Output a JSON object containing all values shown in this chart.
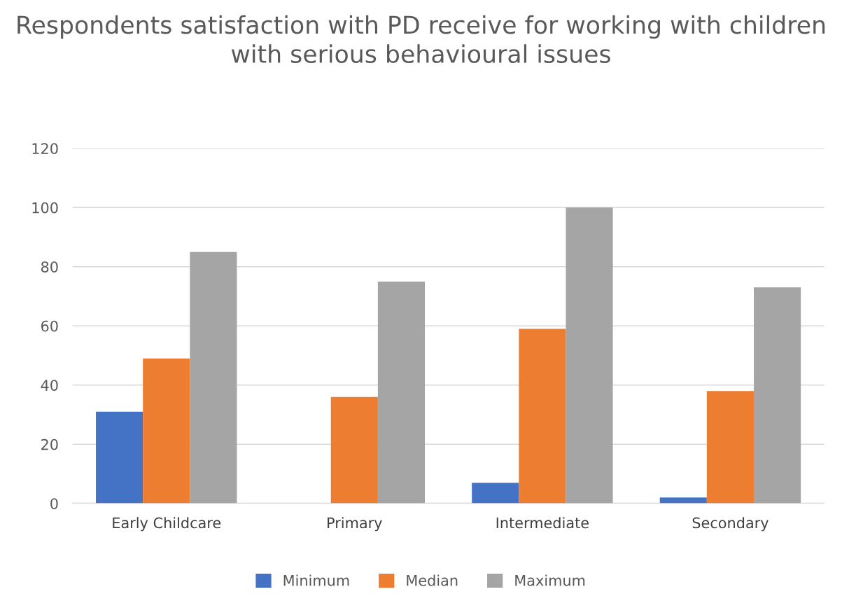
{
  "chart_data": {
    "type": "bar",
    "title": "Respondents satisfaction with PD receive for working with children with serious behavioural issues",
    "categories": [
      "Early Childcare",
      "Primary",
      "Intermediate",
      "Secondary"
    ],
    "series": [
      {
        "name": "Minimum",
        "color": "#4472c4",
        "values": [
          31,
          0,
          7,
          2
        ]
      },
      {
        "name": "Median",
        "color": "#ed7d31",
        "values": [
          49,
          36,
          59,
          38
        ]
      },
      {
        "name": "Maximum",
        "color": "#a5a5a5",
        "values": [
          85,
          75,
          100,
          73
        ]
      }
    ],
    "ylim": [
      0,
      120
    ],
    "yticks": [
      0,
      20,
      40,
      60,
      80,
      100,
      120
    ],
    "grid": "y",
    "legend": "bottom"
  }
}
